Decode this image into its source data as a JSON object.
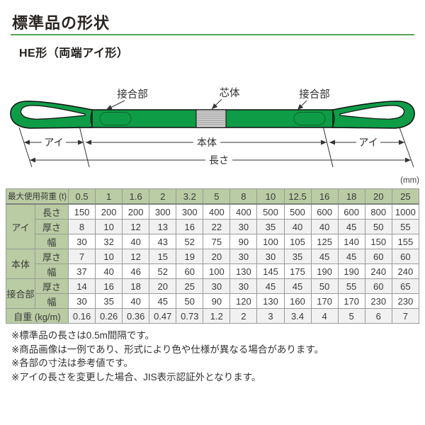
{
  "page": {
    "title": "標準品の形状",
    "subtitle": "HE形（両端アイ形）"
  },
  "diagram": {
    "labels": {
      "joint_left": "接合部",
      "core": "芯体",
      "joint_right": "接合部",
      "eye_left": "アイ",
      "body": "本体",
      "eye_right": "アイ",
      "length": "長さ"
    },
    "colors": {
      "sling_green": "#0f9c47",
      "core_gray": "#d6d6d6"
    }
  },
  "table": {
    "unit_label": "(mm)",
    "header": {
      "label": "最大使用荷重 (t)",
      "values": [
        "0.5",
        "1",
        "1.6",
        "2",
        "3.2",
        "5",
        "8",
        "10",
        "12.5",
        "16",
        "18",
        "20",
        "25"
      ]
    },
    "groups": [
      {
        "label": "アイ",
        "rows": [
          {
            "label": "長さ",
            "values": [
              "150",
              "200",
              "200",
              "300",
              "300",
              "400",
              "400",
              "500",
              "500",
              "600",
              "600",
              "800",
              "1000"
            ]
          },
          {
            "label": "厚さ",
            "values": [
              "8",
              "10",
              "12",
              "13",
              "16",
              "22",
              "30",
              "35",
              "40",
              "40",
              "45",
              "50",
              "55"
            ]
          },
          {
            "label": "幅",
            "values": [
              "30",
              "32",
              "40",
              "43",
              "52",
              "75",
              "90",
              "100",
              "105",
              "125",
              "140",
              "150",
              "155"
            ]
          }
        ]
      },
      {
        "label": "本体",
        "rows": [
          {
            "label": "厚さ",
            "values": [
              "7",
              "10",
              "12",
              "15",
              "19",
              "20",
              "30",
              "30",
              "35",
              "45",
              "45",
              "60",
              "60"
            ]
          },
          {
            "label": "幅",
            "values": [
              "37",
              "40",
              "46",
              "52",
              "60",
              "100",
              "130",
              "145",
              "175",
              "190",
              "190",
              "240",
              "240"
            ]
          }
        ]
      },
      {
        "label": "接合部",
        "rows": [
          {
            "label": "厚さ",
            "values": [
              "14",
              "16",
              "18",
              "20",
              "25",
              "30",
              "30",
              "45",
              "45",
              "50",
              "55",
              "60",
              "65"
            ]
          },
          {
            "label": "幅",
            "values": [
              "30",
              "35",
              "40",
              "45",
              "50",
              "90",
              "120",
              "130",
              "160",
              "170",
              "170",
              "230",
              "230"
            ]
          }
        ]
      }
    ],
    "footer": {
      "label": "自重 (kg/m)",
      "values": [
        "0.16",
        "0.26",
        "0.36",
        "0.47",
        "0.73",
        "1.2",
        "2",
        "3",
        "3.4",
        "4",
        "5",
        "6",
        "7"
      ]
    }
  },
  "notes": [
    "※標準品の長さは0.5m間隔です。",
    "※商品画像は一例であり、形式により色や仕様が異なる場合があります。",
    "※各部の寸法は参考値です。",
    "※アイの長さを変更した場合、JIS表示認証外となります。"
  ],
  "colors": {
    "accent_rule_green": "#57a457",
    "table_header_green": "#b9cca3",
    "row_stripe_gray": "#f1f1f1",
    "table_border": "#979d97"
  }
}
